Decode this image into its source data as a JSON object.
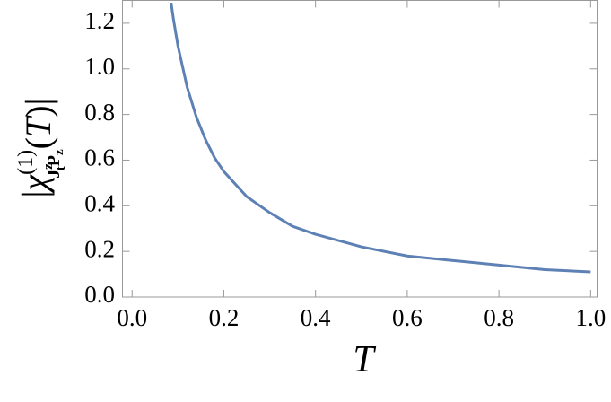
{
  "chart_data": {
    "type": "line",
    "xlabel": "T",
    "ylabel": [
      "|",
      "χ",
      "(1)",
      "J",
      "z",
      "t",
      "P",
      "z",
      "(",
      "T",
      ")|"
    ],
    "x": [
      0.085,
      0.09,
      0.1,
      0.12,
      0.14,
      0.16,
      0.18,
      0.2,
      0.25,
      0.3,
      0.35,
      0.4,
      0.5,
      0.6,
      0.7,
      0.8,
      0.9,
      1.0
    ],
    "series": [
      {
        "color": "#5e81b5",
        "values": [
          1.29,
          1.22,
          1.1,
          0.92,
          0.79,
          0.69,
          0.61,
          0.55,
          0.44,
          0.37,
          0.31,
          0.275,
          0.22,
          0.18,
          0.16,
          0.14,
          0.12,
          0.11
        ]
      }
    ],
    "xlim": [
      -0.021,
      1.014
    ],
    "ylim": [
      0,
      1.3
    ],
    "xticks": [
      {
        "value": 0,
        "label": "0.0"
      },
      0.2,
      0.4,
      0.6,
      0.8,
      {
        "value": 1,
        "label": "1.0"
      }
    ],
    "yticks": [
      {
        "value": 0,
        "label": "0.0"
      },
      0.2,
      0.4,
      0.6,
      0.8,
      {
        "value": 1,
        "label": "1.0"
      },
      1.2
    ]
  }
}
